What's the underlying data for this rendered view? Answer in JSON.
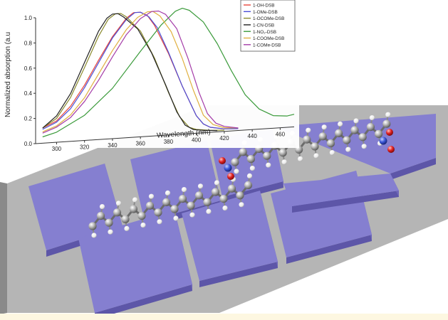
{
  "chart_data": {
    "type": "line",
    "title": "",
    "xlabel": "Wavelength (nm)",
    "ylabel": "Normalized absorption (a.u",
    "xlim": [
      285,
      470
    ],
    "ylim": [
      0,
      1.0
    ],
    "xticks": [
      300,
      320,
      340,
      360,
      380,
      400,
      420,
      440,
      460
    ],
    "xtick_labels": [
      "300",
      "320",
      "340",
      "360",
      "380",
      "400",
      "420",
      "440",
      "460"
    ],
    "yticks": [
      0.0,
      0.2,
      0.4,
      0.6,
      0.8,
      1.0
    ],
    "ytick_labels": [
      "0.0",
      "0.2",
      "0.4",
      "0.6",
      "0.8",
      "1.0"
    ],
    "grid": false,
    "legend_position": "top-right",
    "series": [
      {
        "name": "1-OH-DSB",
        "color": "#e8453c",
        "points": [
          [
            290,
            0.12
          ],
          [
            300,
            0.17
          ],
          [
            310,
            0.28
          ],
          [
            320,
            0.44
          ],
          [
            330,
            0.63
          ],
          [
            340,
            0.81
          ],
          [
            350,
            0.95
          ],
          [
            355,
            0.99
          ],
          [
            360,
            0.99
          ],
          [
            365,
            0.96
          ],
          [
            370,
            0.88
          ],
          [
            380,
            0.65
          ],
          [
            390,
            0.38
          ],
          [
            400,
            0.14
          ],
          [
            405,
            0.07
          ],
          [
            410,
            0.04
          ],
          [
            420,
            0.02
          ],
          [
            430,
            0.015
          ]
        ]
      },
      {
        "name": "1-OMe-DSB",
        "color": "#4b4fd6",
        "points": [
          [
            290,
            0.11
          ],
          [
            300,
            0.16
          ],
          [
            310,
            0.26
          ],
          [
            320,
            0.42
          ],
          [
            330,
            0.61
          ],
          [
            340,
            0.8
          ],
          [
            350,
            0.94
          ],
          [
            356,
            0.99
          ],
          [
            360,
            0.99
          ],
          [
            366,
            0.95
          ],
          [
            372,
            0.86
          ],
          [
            380,
            0.66
          ],
          [
            390,
            0.38
          ],
          [
            400,
            0.14
          ],
          [
            405,
            0.07
          ],
          [
            410,
            0.04
          ],
          [
            420,
            0.02
          ],
          [
            430,
            0.015
          ]
        ]
      },
      {
        "name": "1-OCOMe-DSB",
        "color": "#8a8a2e",
        "points": [
          [
            290,
            0.12
          ],
          [
            300,
            0.19
          ],
          [
            310,
            0.35
          ],
          [
            320,
            0.58
          ],
          [
            330,
            0.82
          ],
          [
            337,
            0.95
          ],
          [
            342,
            0.99
          ],
          [
            346,
            0.99
          ],
          [
            350,
            0.96
          ],
          [
            360,
            0.84
          ],
          [
            370,
            0.62
          ],
          [
            380,
            0.34
          ],
          [
            388,
            0.14
          ],
          [
            395,
            0.05
          ],
          [
            400,
            0.03
          ],
          [
            410,
            0.015
          ],
          [
            420,
            0.01
          ]
        ]
      },
      {
        "name": "1-CN-DSB",
        "color": "#222222",
        "points": [
          [
            290,
            0.12
          ],
          [
            300,
            0.21
          ],
          [
            310,
            0.38
          ],
          [
            320,
            0.62
          ],
          [
            330,
            0.86
          ],
          [
            336,
            0.96
          ],
          [
            340,
            0.99
          ],
          [
            344,
            0.99
          ],
          [
            348,
            0.96
          ],
          [
            358,
            0.86
          ],
          [
            368,
            0.66
          ],
          [
            378,
            0.4
          ],
          [
            386,
            0.18
          ],
          [
            392,
            0.07
          ],
          [
            398,
            0.03
          ],
          [
            405,
            0.02
          ],
          [
            415,
            0.01
          ]
        ]
      },
      {
        "name": "1-NO₂-DSB",
        "color": "#3a9a3a",
        "points": [
          [
            290,
            0.05
          ],
          [
            300,
            0.08
          ],
          [
            320,
            0.2
          ],
          [
            340,
            0.4
          ],
          [
            360,
            0.68
          ],
          [
            375,
            0.88
          ],
          [
            385,
            0.98
          ],
          [
            390,
            1.0
          ],
          [
            395,
            0.98
          ],
          [
            405,
            0.88
          ],
          [
            415,
            0.7
          ],
          [
            425,
            0.48
          ],
          [
            435,
            0.28
          ],
          [
            445,
            0.16
          ],
          [
            455,
            0.1
          ],
          [
            465,
            0.09
          ],
          [
            470,
            0.1
          ]
        ]
      },
      {
        "name": "1-COOMe-DSB",
        "color": "#e0b040",
        "points": [
          [
            290,
            0.09
          ],
          [
            300,
            0.13
          ],
          [
            310,
            0.21
          ],
          [
            320,
            0.34
          ],
          [
            330,
            0.52
          ],
          [
            340,
            0.7
          ],
          [
            350,
            0.86
          ],
          [
            358,
            0.95
          ],
          [
            365,
            0.99
          ],
          [
            369,
            0.99
          ],
          [
            374,
            0.95
          ],
          [
            382,
            0.82
          ],
          [
            390,
            0.6
          ],
          [
            398,
            0.34
          ],
          [
            405,
            0.14
          ],
          [
            412,
            0.06
          ],
          [
            420,
            0.03
          ],
          [
            430,
            0.02
          ]
        ]
      },
      {
        "name": "1-COMe-DSB",
        "color": "#a43ca8",
        "points": [
          [
            290,
            0.08
          ],
          [
            300,
            0.12
          ],
          [
            310,
            0.19
          ],
          [
            320,
            0.31
          ],
          [
            330,
            0.47
          ],
          [
            340,
            0.65
          ],
          [
            350,
            0.82
          ],
          [
            360,
            0.94
          ],
          [
            368,
            0.99
          ],
          [
            373,
            0.99
          ],
          [
            378,
            0.96
          ],
          [
            386,
            0.84
          ],
          [
            394,
            0.6
          ],
          [
            402,
            0.32
          ],
          [
            408,
            0.15
          ],
          [
            414,
            0.07
          ],
          [
            420,
            0.04
          ],
          [
            430,
            0.02
          ]
        ]
      }
    ]
  }
}
